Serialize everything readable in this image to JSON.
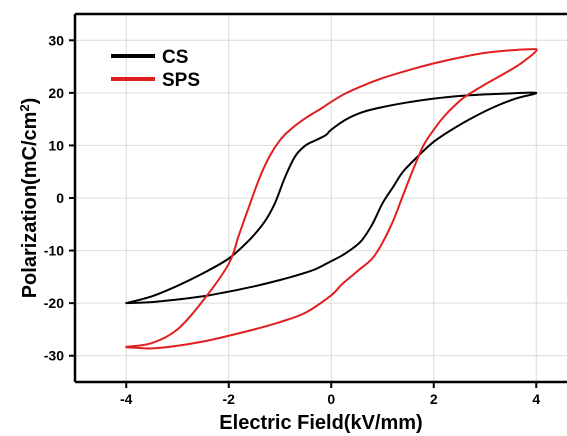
{
  "chart_data": {
    "type": "line",
    "xlabel": "Electric Field(kV/mm)",
    "ylabel_main": "Polarization(mC/cm",
    "ylabel_sup": "2",
    "ylabel_close": ")",
    "xlim": [
      -5,
      4.6
    ],
    "ylim": [
      -35,
      35
    ],
    "x_ticks": [
      -4,
      -2,
      0,
      2,
      4
    ],
    "x_tick_labels": [
      "-4",
      "-2",
      "0",
      "2",
      "4"
    ],
    "y_ticks": [
      -30,
      -20,
      -10,
      0,
      10,
      20,
      30
    ],
    "y_tick_labels": [
      "-30",
      "-20",
      "-10",
      "0",
      "10",
      "20",
      "30"
    ],
    "grid": true,
    "legend_position": "top-left",
    "series": [
      {
        "name": "CS",
        "color": "#000000",
        "x": [
          -4.0,
          -3.5,
          -3.0,
          -2.5,
          -2.0,
          -1.6,
          -1.3,
          -1.1,
          -0.9,
          -0.7,
          -0.5,
          -0.3,
          -0.1,
          0.0,
          0.3,
          0.6,
          1.0,
          1.5,
          2.0,
          2.5,
          3.0,
          3.5,
          4.0,
          3.6,
          3.2,
          2.8,
          2.4,
          2.0,
          1.7,
          1.4,
          1.2,
          1.0,
          0.8,
          0.6,
          0.4,
          0.2,
          0.0,
          -0.3,
          -0.6,
          -1.0,
          -1.5,
          -2.0,
          -2.5,
          -3.0,
          -3.5,
          -4.0
        ],
        "y": [
          -20,
          -18.7,
          -16.7,
          -14.3,
          -11.5,
          -8.0,
          -4.5,
          -1.0,
          4.0,
          8.0,
          10.0,
          11.0,
          12.0,
          13.0,
          15.0,
          16.3,
          17.3,
          18.2,
          18.9,
          19.4,
          19.7,
          19.9,
          20.0,
          18.9,
          17.4,
          15.5,
          13.3,
          10.7,
          8.0,
          5.0,
          2.0,
          -1.0,
          -5.0,
          -8.0,
          -9.7,
          -11.0,
          -12.0,
          -13.5,
          -14.5,
          -15.6,
          -16.8,
          -17.8,
          -18.7,
          -19.3,
          -19.8,
          -20.0
        ]
      },
      {
        "name": "SPS",
        "color": "#e11f1f",
        "x": [
          -4.0,
          -3.5,
          -3.0,
          -2.5,
          -2.0,
          -1.8,
          -1.6,
          -1.4,
          -1.2,
          -1.0,
          -0.8,
          -0.5,
          -0.2,
          0.0,
          0.3,
          0.7,
          1.0,
          1.5,
          2.0,
          2.5,
          3.0,
          3.5,
          3.9,
          4.0,
          3.7,
          3.4,
          3.0,
          2.6,
          2.4,
          2.2,
          2.0,
          1.8,
          1.6,
          1.4,
          1.2,
          1.0,
          0.8,
          0.5,
          0.2,
          0.0,
          -0.5,
          -1.0,
          -1.5,
          -2.0,
          -2.5,
          -3.0,
          -3.5,
          -3.8,
          -4.0
        ],
        "y": [
          -28.3,
          -27.6,
          -25.0,
          -19.5,
          -12.5,
          -7.0,
          -1.5,
          3.8,
          8.0,
          11.0,
          13.0,
          15.2,
          17.0,
          18.3,
          20.0,
          21.7,
          22.8,
          24.3,
          25.6,
          26.7,
          27.6,
          28.1,
          28.3,
          28.0,
          25.6,
          23.8,
          21.6,
          19.2,
          17.5,
          15.5,
          13.0,
          10.0,
          5.5,
          0.5,
          -4.5,
          -8.5,
          -11.5,
          -14.0,
          -16.5,
          -18.5,
          -21.8,
          -23.6,
          -25.0,
          -26.2,
          -27.3,
          -28.1,
          -28.6,
          -28.5,
          -28.4
        ]
      }
    ]
  }
}
